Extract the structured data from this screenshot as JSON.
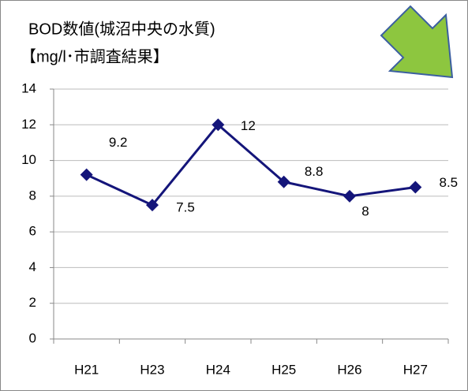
{
  "chart_data": {
    "type": "line",
    "title": "BOD数値(城沼中央の水質)",
    "subtitle": "【mg/l･市調査結果】",
    "categories": [
      "H21",
      "H23",
      "H24",
      "H25",
      "H26",
      "H27"
    ],
    "series": [
      {
        "name": "BOD",
        "color": "#14157a",
        "values": [
          9.2,
          7.5,
          12,
          8.8,
          8,
          8.5
        ]
      }
    ],
    "ylim": [
      0,
      14
    ],
    "yticks": [
      0,
      2,
      4,
      6,
      8,
      10,
      12,
      14
    ],
    "grid": true
  }
}
